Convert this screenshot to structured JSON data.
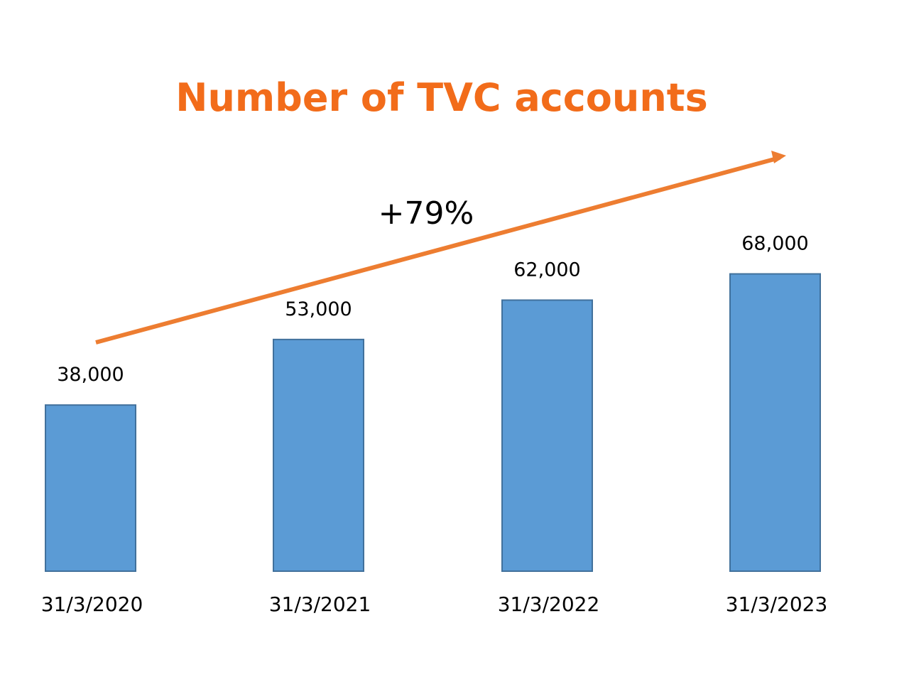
{
  "chart_data": {
    "type": "bar",
    "title": "Number of TVC accounts",
    "categories": [
      "31/3/2020",
      "31/3/2021",
      "31/3/2022",
      "31/3/2023"
    ],
    "values": [
      38000,
      53000,
      62000,
      68000
    ],
    "value_labels": [
      "38,000",
      "53,000",
      "62,000",
      "68,000"
    ],
    "annotation": "+79%",
    "xlabel": "",
    "ylabel": "",
    "ylim": [
      0,
      78000
    ],
    "grid": false,
    "legend": "none",
    "colors": {
      "bar_fill": "#5b9bd5",
      "bar_stroke": "#41719c",
      "title": "#f26c1a",
      "arrow": "#ed7d31",
      "text": "#000000"
    }
  }
}
